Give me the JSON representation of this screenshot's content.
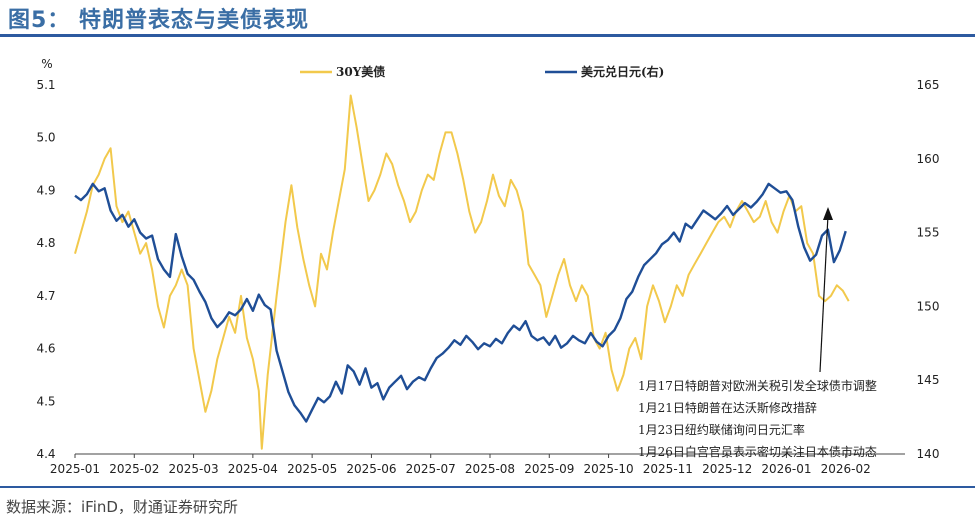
{
  "header": {
    "title": "图5： 特朗普表态与美债表现"
  },
  "footer": {
    "source": "数据来源：iFinD，财通证券研究所"
  },
  "chart_data": {
    "type": "line",
    "title": "特朗普表态与美债表现",
    "left_axis": {
      "unit": "%",
      "ylim": [
        4.4,
        5.1
      ],
      "ticks": [
        "5.1",
        "5.0",
        "4.9",
        "4.8",
        "4.7",
        "4.6",
        "4.5",
        "4.4"
      ]
    },
    "right_axis": {
      "label": "美元兑日元(右)",
      "ylim": [
        140,
        165
      ],
      "ticks": [
        "165",
        "160",
        "155",
        "150",
        "145",
        "140"
      ]
    },
    "x_ticks": [
      "2025-01",
      "2025-02",
      "2025-03",
      "2025-04",
      "2025-05",
      "2025-06",
      "2025-07",
      "2025-08",
      "2025-09",
      "2025-10",
      "2025-11",
      "2025-12",
      "2026-01",
      "2026-02"
    ],
    "legend": [
      "30Y美债",
      "美元兑日元(右)"
    ],
    "series": [
      {
        "name": "30Y美债",
        "axis": "left",
        "color": "#f2c94c",
        "points": [
          [
            0,
            4.78
          ],
          [
            0.1,
            4.82
          ],
          [
            0.2,
            4.86
          ],
          [
            0.3,
            4.91
          ],
          [
            0.4,
            4.93
          ],
          [
            0.5,
            4.96
          ],
          [
            0.6,
            4.98
          ],
          [
            0.7,
            4.87
          ],
          [
            0.8,
            4.84
          ],
          [
            0.9,
            4.86
          ],
          [
            1.0,
            4.82
          ],
          [
            1.1,
            4.78
          ],
          [
            1.2,
            4.8
          ],
          [
            1.3,
            4.75
          ],
          [
            1.4,
            4.68
          ],
          [
            1.5,
            4.64
          ],
          [
            1.6,
            4.7
          ],
          [
            1.7,
            4.72
          ],
          [
            1.8,
            4.75
          ],
          [
            1.9,
            4.72
          ],
          [
            2.0,
            4.6
          ],
          [
            2.1,
            4.54
          ],
          [
            2.2,
            4.48
          ],
          [
            2.3,
            4.52
          ],
          [
            2.4,
            4.58
          ],
          [
            2.5,
            4.62
          ],
          [
            2.6,
            4.66
          ],
          [
            2.7,
            4.63
          ],
          [
            2.8,
            4.7
          ],
          [
            2.9,
            4.62
          ],
          [
            3.0,
            4.58
          ],
          [
            3.1,
            4.52
          ],
          [
            3.15,
            4.41
          ],
          [
            3.25,
            4.55
          ],
          [
            3.4,
            4.7
          ],
          [
            3.55,
            4.84
          ],
          [
            3.65,
            4.91
          ],
          [
            3.75,
            4.83
          ],
          [
            3.85,
            4.77
          ],
          [
            3.95,
            4.72
          ],
          [
            4.05,
            4.68
          ],
          [
            4.15,
            4.78
          ],
          [
            4.25,
            4.75
          ],
          [
            4.35,
            4.82
          ],
          [
            4.45,
            4.88
          ],
          [
            4.55,
            4.94
          ],
          [
            4.65,
            5.08
          ],
          [
            4.75,
            5.02
          ],
          [
            4.85,
            4.95
          ],
          [
            4.95,
            4.88
          ],
          [
            5.05,
            4.9
          ],
          [
            5.15,
            4.93
          ],
          [
            5.25,
            4.97
          ],
          [
            5.35,
            4.95
          ],
          [
            5.45,
            4.91
          ],
          [
            5.55,
            4.88
          ],
          [
            5.65,
            4.84
          ],
          [
            5.75,
            4.86
          ],
          [
            5.85,
            4.9
          ],
          [
            5.95,
            4.93
          ],
          [
            6.05,
            4.92
          ],
          [
            6.15,
            4.97
          ],
          [
            6.25,
            5.01
          ],
          [
            6.35,
            5.01
          ],
          [
            6.45,
            4.97
          ],
          [
            6.55,
            4.92
          ],
          [
            6.65,
            4.86
          ],
          [
            6.75,
            4.82
          ],
          [
            6.85,
            4.84
          ],
          [
            6.95,
            4.88
          ],
          [
            7.05,
            4.93
          ],
          [
            7.15,
            4.89
          ],
          [
            7.25,
            4.87
          ],
          [
            7.35,
            4.92
          ],
          [
            7.45,
            4.9
          ],
          [
            7.55,
            4.86
          ],
          [
            7.65,
            4.76
          ],
          [
            7.75,
            4.74
          ],
          [
            7.85,
            4.72
          ],
          [
            7.95,
            4.66
          ],
          [
            8.05,
            4.7
          ],
          [
            8.15,
            4.74
          ],
          [
            8.25,
            4.77
          ],
          [
            8.35,
            4.72
          ],
          [
            8.45,
            4.69
          ],
          [
            8.55,
            4.72
          ],
          [
            8.65,
            4.7
          ],
          [
            8.75,
            4.62
          ],
          [
            8.85,
            4.6
          ],
          [
            8.95,
            4.63
          ],
          [
            9.05,
            4.56
          ],
          [
            9.15,
            4.52
          ],
          [
            9.25,
            4.55
          ],
          [
            9.35,
            4.6
          ],
          [
            9.45,
            4.62
          ],
          [
            9.55,
            4.58
          ],
          [
            9.65,
            4.68
          ],
          [
            9.75,
            4.72
          ],
          [
            9.85,
            4.69
          ],
          [
            9.95,
            4.65
          ],
          [
            10.05,
            4.68
          ],
          [
            10.15,
            4.72
          ],
          [
            10.25,
            4.7
          ],
          [
            10.35,
            4.74
          ],
          [
            10.45,
            4.76
          ],
          [
            10.55,
            4.78
          ],
          [
            10.65,
            4.8
          ],
          [
            10.75,
            4.82
          ],
          [
            10.85,
            4.84
          ],
          [
            10.95,
            4.85
          ],
          [
            11.05,
            4.83
          ],
          [
            11.15,
            4.86
          ],
          [
            11.25,
            4.88
          ],
          [
            11.35,
            4.86
          ],
          [
            11.45,
            4.84
          ],
          [
            11.55,
            4.85
          ],
          [
            11.65,
            4.88
          ],
          [
            11.75,
            4.84
          ],
          [
            11.85,
            4.82
          ],
          [
            11.95,
            4.86
          ],
          [
            12.05,
            4.89
          ],
          [
            12.15,
            4.86
          ],
          [
            12.25,
            4.87
          ],
          [
            12.35,
            4.8
          ],
          [
            12.45,
            4.78
          ],
          [
            12.55,
            4.7
          ],
          [
            12.65,
            4.69
          ],
          [
            12.75,
            4.7
          ],
          [
            12.85,
            4.72
          ],
          [
            12.95,
            4.71
          ],
          [
            13.05,
            4.69
          ]
        ]
      },
      {
        "name": "美元兑日元(右)",
        "axis": "right",
        "color": "#1f4e96",
        "points": [
          [
            0,
            157.5
          ],
          [
            0.1,
            157.2
          ],
          [
            0.2,
            157.6
          ],
          [
            0.3,
            158.3
          ],
          [
            0.4,
            157.8
          ],
          [
            0.5,
            158.0
          ],
          [
            0.6,
            156.5
          ],
          [
            0.7,
            155.8
          ],
          [
            0.8,
            156.2
          ],
          [
            0.9,
            155.4
          ],
          [
            1.0,
            155.9
          ],
          [
            1.1,
            155.0
          ],
          [
            1.2,
            154.6
          ],
          [
            1.3,
            154.8
          ],
          [
            1.4,
            153.2
          ],
          [
            1.5,
            152.5
          ],
          [
            1.6,
            152.0
          ],
          [
            1.7,
            154.9
          ],
          [
            1.8,
            153.4
          ],
          [
            1.9,
            152.2
          ],
          [
            2.0,
            151.8
          ],
          [
            2.1,
            151.0
          ],
          [
            2.2,
            150.3
          ],
          [
            2.3,
            149.2
          ],
          [
            2.4,
            148.6
          ],
          [
            2.5,
            149.0
          ],
          [
            2.6,
            149.6
          ],
          [
            2.7,
            149.4
          ],
          [
            2.8,
            149.8
          ],
          [
            2.9,
            150.5
          ],
          [
            3.0,
            149.7
          ],
          [
            3.1,
            150.8
          ],
          [
            3.2,
            150.1
          ],
          [
            3.3,
            149.8
          ],
          [
            3.4,
            147.0
          ],
          [
            3.5,
            145.6
          ],
          [
            3.6,
            144.2
          ],
          [
            3.7,
            143.3
          ],
          [
            3.8,
            142.8
          ],
          [
            3.9,
            142.2
          ],
          [
            4.0,
            143.0
          ],
          [
            4.1,
            143.8
          ],
          [
            4.2,
            143.5
          ],
          [
            4.3,
            143.9
          ],
          [
            4.4,
            144.9
          ],
          [
            4.5,
            144.1
          ],
          [
            4.6,
            146.0
          ],
          [
            4.7,
            145.6
          ],
          [
            4.8,
            144.7
          ],
          [
            4.9,
            145.8
          ],
          [
            5.0,
            144.5
          ],
          [
            5.1,
            144.8
          ],
          [
            5.2,
            143.7
          ],
          [
            5.3,
            144.5
          ],
          [
            5.4,
            144.9
          ],
          [
            5.5,
            145.3
          ],
          [
            5.6,
            144.4
          ],
          [
            5.7,
            144.9
          ],
          [
            5.8,
            145.2
          ],
          [
            5.9,
            145.0
          ],
          [
            6.0,
            145.8
          ],
          [
            6.1,
            146.5
          ],
          [
            6.2,
            146.8
          ],
          [
            6.3,
            147.2
          ],
          [
            6.4,
            147.7
          ],
          [
            6.5,
            147.4
          ],
          [
            6.6,
            148.0
          ],
          [
            6.7,
            147.6
          ],
          [
            6.8,
            147.1
          ],
          [
            6.9,
            147.5
          ],
          [
            7.0,
            147.3
          ],
          [
            7.1,
            147.8
          ],
          [
            7.2,
            147.5
          ],
          [
            7.3,
            148.2
          ],
          [
            7.4,
            148.7
          ],
          [
            7.5,
            148.4
          ],
          [
            7.6,
            149.0
          ],
          [
            7.7,
            148.0
          ],
          [
            7.8,
            147.7
          ],
          [
            7.9,
            147.9
          ],
          [
            8.0,
            147.4
          ],
          [
            8.1,
            148.0
          ],
          [
            8.2,
            147.2
          ],
          [
            8.3,
            147.5
          ],
          [
            8.4,
            148.0
          ],
          [
            8.5,
            147.7
          ],
          [
            8.6,
            147.5
          ],
          [
            8.7,
            148.2
          ],
          [
            8.8,
            147.6
          ],
          [
            8.9,
            147.3
          ],
          [
            9.0,
            148.0
          ],
          [
            9.1,
            148.4
          ],
          [
            9.2,
            149.2
          ],
          [
            9.3,
            150.5
          ],
          [
            9.4,
            151.0
          ],
          [
            9.5,
            152.0
          ],
          [
            9.6,
            152.8
          ],
          [
            9.7,
            153.2
          ],
          [
            9.8,
            153.6
          ],
          [
            9.9,
            154.2
          ],
          [
            10.0,
            154.5
          ],
          [
            10.1,
            155.0
          ],
          [
            10.2,
            154.4
          ],
          [
            10.3,
            155.6
          ],
          [
            10.4,
            155.3
          ],
          [
            10.5,
            155.9
          ],
          [
            10.6,
            156.5
          ],
          [
            10.7,
            156.2
          ],
          [
            10.8,
            155.9
          ],
          [
            10.9,
            156.3
          ],
          [
            11.0,
            156.8
          ],
          [
            11.1,
            156.2
          ],
          [
            11.2,
            156.6
          ],
          [
            11.3,
            157.0
          ],
          [
            11.4,
            156.7
          ],
          [
            11.5,
            157.1
          ],
          [
            11.6,
            157.6
          ],
          [
            11.7,
            158.3
          ],
          [
            11.8,
            158.0
          ],
          [
            11.9,
            157.7
          ],
          [
            12.0,
            157.8
          ],
          [
            12.1,
            157.2
          ],
          [
            12.2,
            155.4
          ],
          [
            12.3,
            154.0
          ],
          [
            12.4,
            153.1
          ],
          [
            12.5,
            153.5
          ],
          [
            12.6,
            154.8
          ],
          [
            12.7,
            155.2
          ],
          [
            12.8,
            153.0
          ],
          [
            12.9,
            153.8
          ],
          [
            13.0,
            155.1
          ]
        ]
      }
    ],
    "annotations": [
      "1月17日特朗普对欧洲关税引发全球债市调整",
      "1月21日特朗普在达沃斯修改措辞",
      "1月23日纽约联储询问日元汇率",
      "1月26日白宫官员表示密切关注日本债市动态"
    ]
  }
}
